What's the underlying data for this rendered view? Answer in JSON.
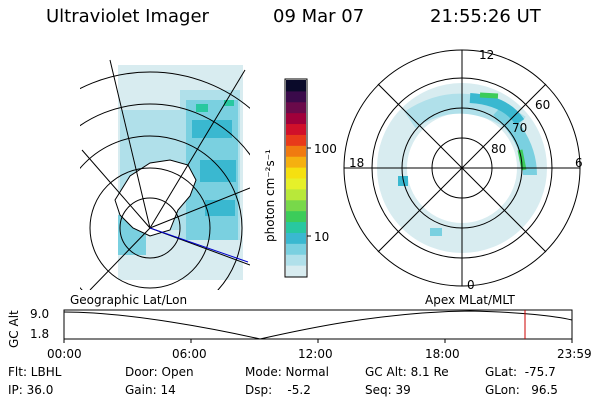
{
  "header": {
    "instrument": "Ultraviolet Imager",
    "date": "09 Mar 07",
    "time": "21:55:26 UT"
  },
  "colorbar": {
    "unit": "photon cm⁻²s⁻¹",
    "ticks": [
      "100",
      "10"
    ],
    "colors": [
      "#0a0a2a",
      "#3a0a4a",
      "#6a0a4a",
      "#a0003a",
      "#d0102a",
      "#e83a1a",
      "#f07a10",
      "#f5b010",
      "#f5e010",
      "#e6f02a",
      "#b8e83a",
      "#78d84a",
      "#3ccc5a",
      "#28c8a0",
      "#3ab8d0",
      "#7ad0e0",
      "#b0e0ea",
      "#d8ecf0"
    ]
  },
  "left_panel": {
    "label": "Geographic Lat/Lon"
  },
  "right_panel": {
    "label": "Apex MLat/MLT",
    "mlt_labels": {
      "top": "12",
      "left": "18",
      "right": "6",
      "bottom": "0"
    },
    "lat_labels": [
      "60",
      "70",
      "80"
    ]
  },
  "timeline": {
    "axis_label": "GC Alt",
    "y_ticks": [
      "9.0",
      "1.8"
    ],
    "x_ticks": [
      "00:00",
      "06:00",
      "12:00",
      "18:00",
      "23:59"
    ]
  },
  "status": {
    "filter": "Flt: LBHL",
    "ip": "IP: 36.0",
    "door": "Door: Open",
    "gain": "Gain: 14",
    "mode": "Mode: Normal",
    "dsp": "Dsp:    -5.2",
    "gc_alt": "GC Alt: 8.1 Re",
    "seq": "Seq: 39",
    "glat": "GLat:  -75.7",
    "glon": "GLon:   96.5"
  }
}
